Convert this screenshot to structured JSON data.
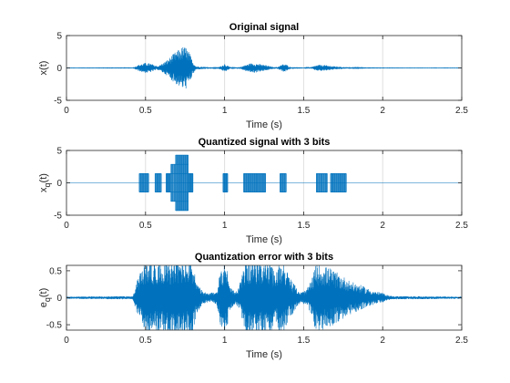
{
  "figure": {
    "background": "#ffffff",
    "line_color": "#0072bd",
    "axis_color": "#262626",
    "grid_color": "#dfdfdf"
  },
  "chart_data": [
    {
      "type": "line",
      "title": "Original signal",
      "xlabel": "Time (s)",
      "ylabel": "x(t)",
      "ylabel_main": "x(t)",
      "ylabel_sub": "",
      "ylabel_tail": "",
      "xlim": [
        0,
        2.5
      ],
      "ylim": [
        -5,
        5
      ],
      "xticks": [
        0,
        0.5,
        1,
        1.5,
        2,
        2.5
      ],
      "xtick_labels": [
        "0",
        "0.5",
        "1",
        "1.5",
        "2",
        "2.5"
      ],
      "yticks": [
        -5,
        0,
        5
      ],
      "ytick_labels": [
        "-5",
        "0",
        "5"
      ],
      "grid": "x",
      "series": [
        {
          "envelope": [
            [
              0.0,
              0.02
            ],
            [
              0.42,
              0.03
            ],
            [
              0.44,
              0.3
            ],
            [
              0.47,
              0.6
            ],
            [
              0.5,
              0.8
            ],
            [
              0.53,
              0.7
            ],
            [
              0.56,
              0.4
            ],
            [
              0.58,
              0.3
            ],
            [
              0.6,
              0.6
            ],
            [
              0.63,
              1.1
            ],
            [
              0.66,
              1.8
            ],
            [
              0.69,
              2.5
            ],
            [
              0.72,
              3.0
            ],
            [
              0.74,
              3.4
            ],
            [
              0.76,
              3.2
            ],
            [
              0.78,
              2.2
            ],
            [
              0.8,
              1.0
            ],
            [
              0.82,
              0.25
            ],
            [
              0.95,
              0.05
            ],
            [
              0.98,
              0.3
            ],
            [
              1.0,
              0.7
            ],
            [
              1.02,
              0.3
            ],
            [
              1.05,
              0.05
            ],
            [
              1.1,
              0.15
            ],
            [
              1.13,
              0.45
            ],
            [
              1.16,
              0.7
            ],
            [
              1.19,
              0.75
            ],
            [
              1.22,
              0.6
            ],
            [
              1.25,
              0.5
            ],
            [
              1.28,
              0.3
            ],
            [
              1.3,
              0.2
            ],
            [
              1.33,
              0.1
            ],
            [
              1.35,
              0.35
            ],
            [
              1.37,
              0.6
            ],
            [
              1.39,
              0.55
            ],
            [
              1.41,
              0.2
            ],
            [
              1.44,
              0.05
            ],
            [
              1.5,
              0.02
            ],
            [
              1.55,
              0.15
            ],
            [
              1.58,
              0.4
            ],
            [
              1.6,
              0.5
            ],
            [
              1.63,
              0.45
            ],
            [
              1.66,
              0.35
            ],
            [
              1.7,
              0.25
            ],
            [
              1.75,
              0.15
            ],
            [
              1.8,
              0.08
            ],
            [
              1.9,
              0.03
            ],
            [
              2.1,
              0.02
            ],
            [
              2.5,
              0.02
            ]
          ]
        }
      ]
    },
    {
      "type": "line",
      "title": "Quantized signal with 3 bits",
      "xlabel": "Time (s)",
      "ylabel": "xq(t)",
      "ylabel_main": "x",
      "ylabel_sub": "q",
      "ylabel_tail": "(t)",
      "xlim": [
        0,
        2.5
      ],
      "ylim": [
        -5,
        5
      ],
      "xticks": [
        0,
        0.5,
        1,
        1.5,
        2,
        2.5
      ],
      "xtick_labels": [
        "0",
        "0.5",
        "1",
        "1.5",
        "2",
        "2.5"
      ],
      "yticks": [
        -5,
        0,
        5
      ],
      "ytick_labels": [
        "-5",
        "0",
        "5"
      ],
      "grid": "x",
      "series": [
        {
          "quantization_step": 1.43,
          "blocks": [
            {
              "start": 0.46,
              "end": 0.52,
              "level": 1
            },
            {
              "start": 0.56,
              "end": 0.6,
              "level": 1
            },
            {
              "start": 0.63,
              "end": 0.66,
              "level": 1
            },
            {
              "start": 0.66,
              "end": 0.69,
              "level": 2
            },
            {
              "start": 0.69,
              "end": 0.77,
              "level": 3
            },
            {
              "start": 0.77,
              "end": 0.8,
              "level": 1
            },
            {
              "start": 0.99,
              "end": 1.02,
              "level": 1
            },
            {
              "start": 1.12,
              "end": 1.26,
              "level": 1
            },
            {
              "start": 1.35,
              "end": 1.39,
              "level": 1
            },
            {
              "start": 1.58,
              "end": 1.65,
              "level": 1
            },
            {
              "start": 1.67,
              "end": 1.77,
              "level": 1
            }
          ]
        }
      ]
    },
    {
      "type": "line",
      "title": "Quantization error with 3 bits",
      "xlabel": "Time (s)",
      "ylabel": "eq(t)",
      "ylabel_main": "e",
      "ylabel_sub": "q",
      "ylabel_tail": "(t)",
      "xlim": [
        0,
        2.5
      ],
      "ylim": [
        -0.6,
        0.6
      ],
      "xticks": [
        0,
        0.5,
        1,
        1.5,
        2,
        2.5
      ],
      "xtick_labels": [
        "0",
        "0.5",
        "1",
        "1.5",
        "2",
        "2.5"
      ],
      "yticks": [
        -0.5,
        0,
        0.5
      ],
      "ytick_labels": [
        "-0.5",
        "0",
        "0.5"
      ],
      "grid": "x",
      "series": [
        {
          "envelope": [
            [
              0.0,
              0.02
            ],
            [
              0.42,
              0.03
            ],
            [
              0.45,
              0.35
            ],
            [
              0.48,
              0.55
            ],
            [
              0.5,
              0.7
            ],
            [
              0.56,
              0.7
            ],
            [
              0.6,
              0.7
            ],
            [
              0.7,
              0.7
            ],
            [
              0.8,
              0.7
            ],
            [
              0.82,
              0.3
            ],
            [
              0.86,
              0.12
            ],
            [
              0.9,
              0.08
            ],
            [
              0.95,
              0.12
            ],
            [
              0.98,
              0.6
            ],
            [
              1.0,
              0.7
            ],
            [
              1.02,
              0.5
            ],
            [
              1.04,
              0.2
            ],
            [
              1.07,
              0.1
            ],
            [
              1.1,
              0.3
            ],
            [
              1.13,
              0.7
            ],
            [
              1.2,
              0.7
            ],
            [
              1.27,
              0.7
            ],
            [
              1.3,
              0.6
            ],
            [
              1.32,
              0.4
            ],
            [
              1.35,
              0.7
            ],
            [
              1.38,
              0.7
            ],
            [
              1.4,
              0.45
            ],
            [
              1.44,
              0.25
            ],
            [
              1.48,
              0.1
            ],
            [
              1.52,
              0.15
            ],
            [
              1.55,
              0.35
            ],
            [
              1.58,
              0.65
            ],
            [
              1.62,
              0.6
            ],
            [
              1.67,
              0.55
            ],
            [
              1.72,
              0.45
            ],
            [
              1.76,
              0.38
            ],
            [
              1.8,
              0.3
            ],
            [
              1.85,
              0.25
            ],
            [
              1.9,
              0.18
            ],
            [
              1.95,
              0.12
            ],
            [
              2.0,
              0.09
            ],
            [
              2.03,
              0.05
            ],
            [
              2.06,
              0.03
            ],
            [
              2.5,
              0.02
            ]
          ]
        }
      ]
    }
  ]
}
